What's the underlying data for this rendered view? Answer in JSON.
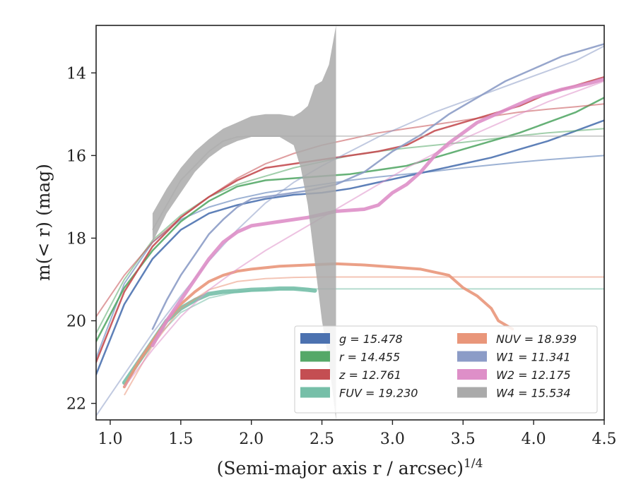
{
  "chart_data": {
    "type": "line",
    "xlabel": "(Semi-major axis r / arcsec)",
    "xlabel_exp": "1/4",
    "ylabel": "m(< r) (mag)",
    "xlim": [
      0.9,
      4.5
    ],
    "ylim": [
      22.4,
      12.85
    ],
    "xticks": [
      "1.0",
      "1.5",
      "2.0",
      "2.5",
      "3.0",
      "3.5",
      "4.0",
      "4.5"
    ],
    "xtick_values": [
      1.0,
      1.5,
      2.0,
      2.5,
      3.0,
      3.5,
      4.0,
      4.5
    ],
    "yticks": [
      "14",
      "16",
      "18",
      "20",
      "22"
    ],
    "ytick_values": [
      14,
      16,
      18,
      20,
      22
    ],
    "grid": false,
    "legend_position": "lower-right",
    "legend": [
      {
        "label": "g = 15.478",
        "color": "#4C72B0"
      },
      {
        "label": "r = 14.455",
        "color": "#55A868"
      },
      {
        "label": "z = 12.761",
        "color": "#C44E52"
      },
      {
        "label": "FUV = 19.230",
        "color": "#76BFA8"
      },
      {
        "label": "NUV = 18.939",
        "color": "#E9967A"
      },
      {
        "label": "W1 = 11.341",
        "color": "#8C9CC7"
      },
      {
        "label": "W2 = 12.175",
        "color": "#DE8FC8"
      },
      {
        "label": "W4 = 15.534",
        "color": "#AAAAAA"
      }
    ],
    "series": [
      {
        "key": "g",
        "color": "#4C72B0",
        "width": 2.5,
        "x": [
          0.9,
          1.1,
          1.3,
          1.5,
          1.7,
          1.9,
          2.1,
          2.3,
          2.5,
          2.7,
          2.9,
          3.1,
          3.3,
          3.5,
          3.7,
          3.9,
          4.1,
          4.3,
          4.5
        ],
        "y": [
          21.3,
          19.6,
          18.5,
          17.8,
          17.4,
          17.2,
          17.05,
          16.95,
          16.9,
          16.8,
          16.65,
          16.5,
          16.35,
          16.2,
          16.05,
          15.85,
          15.65,
          15.4,
          15.15
        ],
        "model": [
          20.9,
          19.1,
          18.1,
          17.55,
          17.25,
          17.05,
          16.9,
          16.8,
          16.7,
          16.6,
          16.52,
          16.45,
          16.38,
          16.3,
          16.23,
          16.16,
          16.1,
          16.05,
          16.0
        ]
      },
      {
        "key": "r",
        "color": "#55A868",
        "width": 2.5,
        "x": [
          0.9,
          1.1,
          1.3,
          1.5,
          1.7,
          1.9,
          2.1,
          2.3,
          2.5,
          2.7,
          2.9,
          3.1,
          3.3,
          3.5,
          3.7,
          3.9,
          4.1,
          4.3,
          4.5
        ],
        "y": [
          20.5,
          19.2,
          18.3,
          17.6,
          17.1,
          16.75,
          16.6,
          16.55,
          16.5,
          16.45,
          16.35,
          16.25,
          16.05,
          15.85,
          15.65,
          15.45,
          15.2,
          14.95,
          14.6
        ],
        "model": [
          20.3,
          19.0,
          18.05,
          17.45,
          17.0,
          16.7,
          16.5,
          16.3,
          16.15,
          16.0,
          15.9,
          15.82,
          15.75,
          15.68,
          15.6,
          15.52,
          15.45,
          15.4,
          15.35
        ]
      },
      {
        "key": "z",
        "color": "#C44E52",
        "width": 2.5,
        "x": [
          0.9,
          1.1,
          1.3,
          1.5,
          1.7,
          1.9,
          2.1,
          2.3,
          2.5,
          2.7,
          2.9,
          3.1,
          3.3,
          3.5,
          3.7,
          3.9,
          4.1,
          4.3,
          4.5
        ],
        "y": [
          21.0,
          19.3,
          18.2,
          17.5,
          17.0,
          16.6,
          16.3,
          16.2,
          16.1,
          16.0,
          15.9,
          15.75,
          15.4,
          15.2,
          15.0,
          14.8,
          14.5,
          14.3,
          14.1
        ],
        "model": [
          19.9,
          18.9,
          18.1,
          17.5,
          17.0,
          16.55,
          16.2,
          15.95,
          15.75,
          15.6,
          15.45,
          15.35,
          15.25,
          15.15,
          15.05,
          14.95,
          14.88,
          14.82,
          14.75
        ]
      },
      {
        "key": "FUV",
        "color": "#76BFA8",
        "width": 6,
        "x": [
          1.1,
          1.2,
          1.3,
          1.4,
          1.5,
          1.6,
          1.7,
          1.8,
          1.9,
          2.0,
          2.1,
          2.2,
          2.3,
          2.4,
          2.45
        ],
        "y": [
          21.5,
          21.0,
          20.5,
          20.0,
          19.7,
          19.5,
          19.35,
          19.3,
          19.28,
          19.25,
          19.24,
          19.22,
          19.22,
          19.25,
          19.27
        ],
        "model_x": [
          1.1,
          1.3,
          1.5,
          1.7,
          1.9,
          2.1,
          2.3,
          2.5,
          3.0,
          3.5,
          4.0,
          4.5
        ],
        "model": [
          21.6,
          20.5,
          19.8,
          19.45,
          19.3,
          19.25,
          19.23,
          19.23,
          19.23,
          19.23,
          19.23,
          19.23
        ]
      },
      {
        "key": "NUV",
        "color": "#E9967A",
        "width": 4,
        "x": [
          1.1,
          1.2,
          1.3,
          1.4,
          1.5,
          1.6,
          1.7,
          1.8,
          1.9,
          2.0,
          2.2,
          2.4,
          2.6,
          2.8,
          3.0,
          3.2,
          3.4,
          3.5,
          3.6,
          3.7,
          3.75,
          3.8,
          3.85
        ],
        "y": [
          21.6,
          21.0,
          20.5,
          20.0,
          19.6,
          19.3,
          19.05,
          18.9,
          18.8,
          18.75,
          18.68,
          18.65,
          18.62,
          18.65,
          18.7,
          18.75,
          18.9,
          19.2,
          19.4,
          19.7,
          20.0,
          20.1,
          20.2
        ],
        "model_x": [
          1.1,
          1.3,
          1.5,
          1.7,
          1.9,
          2.1,
          2.3,
          2.5,
          3.0,
          3.5,
          4.0,
          4.5
        ],
        "model": [
          21.8,
          20.6,
          19.7,
          19.25,
          19.05,
          18.98,
          18.95,
          18.94,
          18.94,
          18.94,
          18.94,
          18.94
        ]
      },
      {
        "key": "W1",
        "color": "#8C9CC7",
        "width": 2.5,
        "x": [
          1.3,
          1.4,
          1.5,
          1.6,
          1.7,
          1.8,
          1.9,
          2.0,
          2.2,
          2.4,
          2.6,
          2.8,
          3.0,
          3.2,
          3.4,
          3.6,
          3.8,
          4.0,
          4.2,
          4.4,
          4.5
        ],
        "y": [
          20.2,
          19.5,
          18.9,
          18.4,
          17.9,
          17.55,
          17.25,
          17.05,
          16.95,
          16.85,
          16.7,
          16.4,
          15.9,
          15.5,
          15.0,
          14.6,
          14.2,
          13.9,
          13.6,
          13.4,
          13.3
        ],
        "model_x": [
          0.9,
          1.1,
          1.3,
          1.5,
          1.7,
          1.9,
          2.1,
          2.3,
          2.5,
          2.7,
          2.9,
          3.1,
          3.3,
          3.5,
          3.7,
          3.9,
          4.1,
          4.3,
          4.5
        ],
        "model": [
          22.3,
          21.3,
          20.3,
          19.4,
          18.55,
          17.8,
          17.15,
          16.65,
          16.25,
          15.9,
          15.55,
          15.25,
          14.95,
          14.7,
          14.45,
          14.2,
          13.95,
          13.7,
          13.35
        ]
      },
      {
        "key": "W2",
        "color": "#DE8FC8",
        "width": 5,
        "x": [
          1.3,
          1.4,
          1.5,
          1.6,
          1.7,
          1.8,
          1.9,
          2.0,
          2.2,
          2.4,
          2.6,
          2.8,
          2.9,
          3.0,
          3.1,
          3.2,
          3.3,
          3.4,
          3.6,
          3.8,
          4.0,
          4.2,
          4.4,
          4.5
        ],
        "y": [
          20.6,
          20.0,
          19.5,
          19.0,
          18.5,
          18.1,
          17.85,
          17.7,
          17.6,
          17.5,
          17.35,
          17.3,
          17.2,
          16.9,
          16.7,
          16.4,
          16.0,
          15.7,
          15.2,
          14.9,
          14.6,
          14.4,
          14.25,
          14.15
        ],
        "model_x": [
          1.1,
          1.3,
          1.5,
          1.7,
          1.9,
          2.1,
          2.3,
          2.5,
          2.7,
          2.9,
          3.1,
          3.3,
          3.5,
          3.7,
          3.9,
          4.1,
          4.3,
          4.5
        ],
        "model": [
          21.6,
          20.7,
          19.9,
          19.25,
          18.75,
          18.3,
          17.9,
          17.5,
          17.1,
          16.7,
          16.3,
          15.95,
          15.6,
          15.3,
          15.0,
          14.7,
          14.45,
          14.2
        ]
      },
      {
        "key": "W4",
        "color": "#AAAAAA",
        "width": 1,
        "band_x": [
          1.3,
          1.4,
          1.5,
          1.6,
          1.7,
          1.8,
          1.9,
          2.0,
          2.1,
          2.2,
          2.3,
          2.35,
          2.4,
          2.45,
          2.5,
          2.55,
          2.6
        ],
        "band_upper": [
          17.4,
          16.8,
          16.3,
          15.9,
          15.6,
          15.35,
          15.2,
          15.05,
          15.0,
          15.0,
          15.05,
          14.95,
          14.8,
          14.3,
          14.2,
          13.8,
          12.85
        ],
        "band_lower": [
          18.1,
          17.4,
          16.9,
          16.4,
          16.05,
          15.8,
          15.65,
          15.55,
          15.55,
          15.55,
          15.75,
          16.3,
          17.2,
          18.6,
          20.0,
          21.0,
          22.4
        ],
        "model_x": [
          1.3,
          1.5,
          1.7,
          1.8,
          1.9,
          2.0,
          2.5,
          3.0,
          3.5,
          4.0,
          4.5
        ],
        "model": [
          17.8,
          16.6,
          15.9,
          15.65,
          15.55,
          15.53,
          15.53,
          15.53,
          15.53,
          15.53,
          15.53
        ]
      }
    ]
  }
}
